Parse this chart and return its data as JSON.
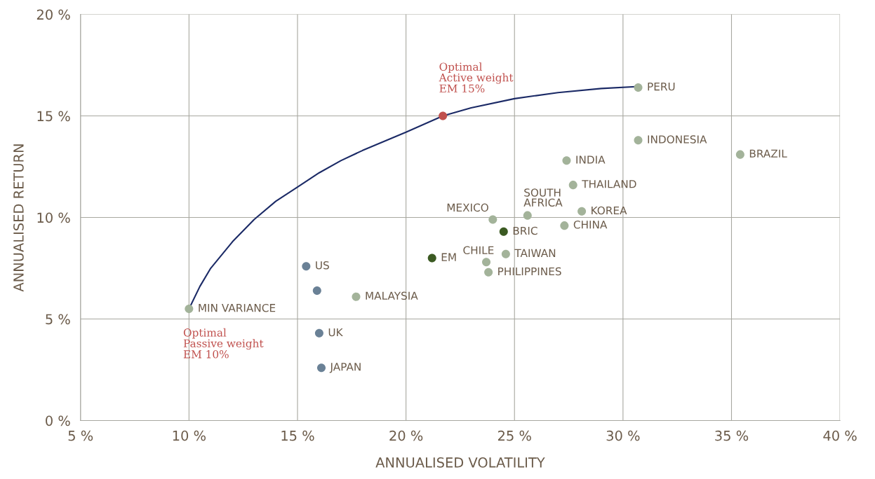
{
  "chart_data": {
    "type": "scatter",
    "xlabel": "ANNUALISED VOLATILITY",
    "ylabel": "ANNUALISED RETURN",
    "xlim": [
      5,
      40
    ],
    "ylim": [
      0,
      20
    ],
    "xticks": [
      {
        "value": 5,
        "label": "5 %"
      },
      {
        "value": 10,
        "label": "10 %"
      },
      {
        "value": 15,
        "label": "15 %"
      },
      {
        "value": 20,
        "label": "20 %"
      },
      {
        "value": 25,
        "label": "25 %"
      },
      {
        "value": 30,
        "label": "30 %"
      },
      {
        "value": 35,
        "label": "35 %"
      },
      {
        "value": 40,
        "label": "40 %"
      }
    ],
    "yticks": [
      {
        "value": 0,
        "label": "0 %"
      },
      {
        "value": 5,
        "label": "5 %"
      },
      {
        "value": 10,
        "label": "10 %"
      },
      {
        "value": 15,
        "label": "15 %"
      },
      {
        "value": 20,
        "label": "20 %"
      }
    ],
    "grid": true,
    "legend": false,
    "marker": "circle",
    "series": [
      {
        "type": "line",
        "marker": "none",
        "color": "#1b2a66",
        "x": [
          10,
          10.5,
          11,
          12,
          13,
          14,
          15,
          16,
          17,
          18,
          20,
          21.7,
          23,
          25,
          27,
          29,
          30.7
        ],
        "values": [
          5.5,
          6.6,
          7.5,
          8.8,
          9.9,
          10.8,
          11.5,
          12.2,
          12.8,
          13.3,
          14.2,
          15.0,
          15.4,
          15.85,
          16.15,
          16.35,
          16.45
        ]
      },
      {
        "color": "#a3b39a",
        "x": [
          10,
          17.7,
          24.0,
          23.7,
          24.6,
          23.8,
          25.6,
          27.4,
          27.7,
          28.1,
          27.3,
          30.7,
          30.7,
          35.4
        ],
        "values": [
          5.5,
          6.1,
          9.9,
          7.8,
          8.2,
          7.3,
          10.1,
          12.8,
          11.6,
          10.3,
          9.6,
          16.4,
          13.8,
          13.1
        ],
        "value_labels": [
          "MIN VARIANCE",
          "MALAYSIA",
          "MEXICO",
          "CHILE",
          "TAIWAN",
          "PHILIPPINES",
          "SOUTH\nAFRICA",
          "INDIA",
          "THAILAND",
          "KOREA",
          "CHINA",
          "PERU",
          "INDONESIA",
          "BRAZIL"
        ]
      },
      {
        "color": "#3b5a22",
        "x": [
          21.2,
          24.5
        ],
        "values": [
          8.0,
          9.3
        ],
        "value_labels": [
          "EM",
          "BRIC"
        ]
      },
      {
        "color": "#6a8196",
        "x": [
          15.4,
          15.9,
          16.0,
          16.1
        ],
        "values": [
          7.6,
          6.4,
          4.3,
          2.6
        ],
        "value_labels": [
          "US",
          null,
          "UK",
          "JAPAN"
        ]
      },
      {
        "color": "#c0504d",
        "x": [
          21.7
        ],
        "values": [
          15.0
        ]
      }
    ],
    "annotations": [
      {
        "text": "Optimal\nActive weight\nEM 15%",
        "x": 21.7,
        "y": 15.0
      },
      {
        "text": "Optimal\nPassive weight\nEM 10%",
        "x": 10,
        "y": 5.5
      }
    ]
  }
}
